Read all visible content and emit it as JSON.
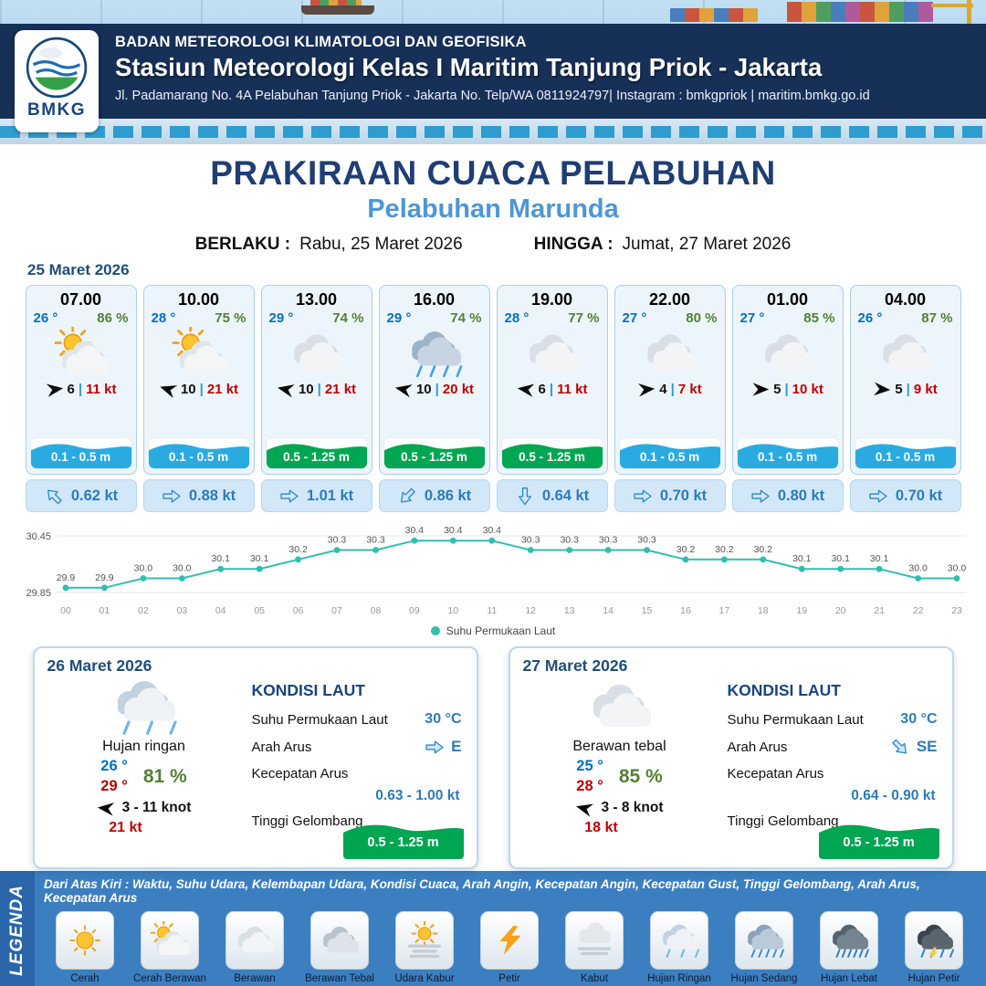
{
  "header": {
    "logo_text": "BMKG",
    "agency": "BADAN METEOROLOGI KLIMATOLOGI DAN GEOFISIKA",
    "station": "Stasiun Meteorologi Kelas I Maritim Tanjung Priok - Jakarta",
    "address": "Jl. Padamarang No. 4A Pelabuhan Tanjung Priok - Jakarta No. Telp/WA 0811924797| Instagram : bmkgpriok | maritim.bmkg.go.id"
  },
  "title": {
    "main": "PRAKIRAAN CUACA PELABUHAN",
    "port": "Pelabuhan Marunda",
    "valid_label": "BERLAKU :",
    "valid_value": "Rabu, 25 Maret 2026",
    "until_label": "HINGGA :",
    "until_value": "Jumat, 27 Maret 2026"
  },
  "hourly": {
    "date": "25 Maret 2026",
    "cards": [
      {
        "time": "07.00",
        "temp": "26 °",
        "humidity": "86 %",
        "icon": "partly-cloudy",
        "wind_deg": -8,
        "wind": "6",
        "sep": "|",
        "gust": "11 kt",
        "wave": "0.1 - 0.5 m",
        "wave_color": "#29abe2",
        "cur_deg": -135,
        "current": "0.62 kt"
      },
      {
        "time": "10.00",
        "temp": "28 °",
        "humidity": "75 %",
        "icon": "partly-cloudy",
        "wind_deg": 198,
        "wind": "10",
        "sep": "|",
        "gust": "21 kt",
        "wave": "0.1 - 0.5 m",
        "wave_color": "#29abe2",
        "cur_deg": 0,
        "current": "0.88 kt"
      },
      {
        "time": "13.00",
        "temp": "29 °",
        "humidity": "74 %",
        "icon": "cloudy",
        "wind_deg": 192,
        "wind": "10",
        "sep": "|",
        "gust": "21 kt",
        "wave": "0.5 - 1.25 m",
        "wave_color": "#00a651",
        "cur_deg": 0,
        "current": "1.01 kt"
      },
      {
        "time": "16.00",
        "temp": "29 °",
        "humidity": "74 %",
        "icon": "rain",
        "wind_deg": 192,
        "wind": "10",
        "sep": "|",
        "gust": "20 kt",
        "wave": "0.5 - 1.25 m",
        "wave_color": "#00a651",
        "cur_deg": 135,
        "current": "0.86 kt"
      },
      {
        "time": "19.00",
        "temp": "28 °",
        "humidity": "77 %",
        "icon": "cloudy",
        "wind_deg": 188,
        "wind": "6",
        "sep": "|",
        "gust": "11 kt",
        "wave": "0.5 - 1.25 m",
        "wave_color": "#00a651",
        "cur_deg": 90,
        "current": "0.64 kt"
      },
      {
        "time": "22.00",
        "temp": "27 °",
        "humidity": "80 %",
        "icon": "cloudy",
        "wind_deg": -5,
        "wind": "4",
        "sep": "|",
        "gust": "7 kt",
        "wave": "0.1 - 0.5 m",
        "wave_color": "#29abe2",
        "cur_deg": 0,
        "current": "0.70 kt"
      },
      {
        "time": "01.00",
        "temp": "27 °",
        "humidity": "85 %",
        "icon": "cloudy",
        "wind_deg": 0,
        "wind": "5",
        "sep": "|",
        "gust": "10 kt",
        "wave": "0.1 - 0.5 m",
        "wave_color": "#29abe2",
        "cur_deg": 0,
        "current": "0.80 kt"
      },
      {
        "time": "04.00",
        "temp": "26 °",
        "humidity": "87 %",
        "icon": "cloudy",
        "wind_deg": 4,
        "wind": "5",
        "sep": "|",
        "gust": "9 kt",
        "wave": "0.1 - 0.5 m",
        "wave_color": "#29abe2",
        "cur_deg": 0,
        "current": "0.70 kt"
      }
    ]
  },
  "chart_data": {
    "type": "line",
    "title": "Suhu Permukaan Laut",
    "legend_label": "Suhu Permukaan Laut",
    "x": [
      "00",
      "01",
      "02",
      "03",
      "04",
      "05",
      "06",
      "07",
      "08",
      "09",
      "10",
      "11",
      "12",
      "13",
      "14",
      "15",
      "16",
      "17",
      "18",
      "19",
      "20",
      "21",
      "22",
      "23"
    ],
    "values": [
      29.9,
      29.9,
      30.0,
      30.0,
      30.1,
      30.1,
      30.2,
      30.3,
      30.3,
      30.4,
      30.4,
      30.4,
      30.3,
      30.3,
      30.3,
      30.3,
      30.2,
      30.2,
      30.2,
      30.1,
      30.1,
      30.1,
      30.0,
      30.0
    ],
    "ylim": [
      29.85,
      30.45
    ],
    "line_color": "#2fbfae",
    "xlabel": "",
    "ylabel": "",
    "grid": "horizontal",
    "legend_position": "bottom"
  },
  "daily": [
    {
      "date": "26 Maret 2026",
      "icon": "rain-light",
      "condition": "Hujan ringan",
      "temp_min": "26 °",
      "temp_max": "29 °",
      "humidity": "81 %",
      "wind_deg": 186,
      "wind": "3 - 11 knot",
      "gust": "21 kt",
      "sea": {
        "title": "KONDISI LAUT",
        "sst_label": "Suhu Permukaan Laut",
        "sst": "30 °C",
        "dir_label": "Arah Arus",
        "cur_deg": 0,
        "dir": "E",
        "spd_label": "Kecepatan Arus",
        "spd": "0.63 - 1.00 kt",
        "wave_label": "Tinggi Gelombang",
        "wave": "0.5 - 1.25 m",
        "wave_color": "#00a651"
      }
    },
    {
      "date": "27 Maret 2026",
      "icon": "cloudy",
      "condition": "Berawan tebal",
      "temp_min": "25 °",
      "temp_max": "28 °",
      "humidity": "85 %",
      "wind_deg": 195,
      "wind": "3 - 8 knot",
      "gust": "18 kt",
      "sea": {
        "title": "KONDISI LAUT",
        "sst_label": "Suhu Permukaan Laut",
        "sst": "30 °C",
        "dir_label": "Arah Arus",
        "cur_deg": 45,
        "dir": "SE",
        "spd_label": "Kecepatan Arus",
        "spd": "0.64 - 0.90 kt",
        "wave_label": "Tinggi Gelombang",
        "wave": "0.5 - 1.25 m",
        "wave_color": "#00a651"
      }
    }
  ],
  "legend": {
    "title": "LEGENDA",
    "note": "Dari Atas Kiri : Waktu, Suhu Udara, Kelembapan Udara, Kondisi Cuaca, Arah Angin, Kecepatan Angin, Kecepatan Gust, Tinggi Gelombang, Arah Arus, Kecepatan Arus",
    "items": [
      {
        "label": "Cerah",
        "icon": "sun"
      },
      {
        "label": "Cerah Berawan",
        "icon": "partly-cloudy"
      },
      {
        "label": "Berawan",
        "icon": "cloudy"
      },
      {
        "label": "Berawan Tebal",
        "icon": "cloudy-thick"
      },
      {
        "label": "Udara Kabur",
        "icon": "haze"
      },
      {
        "label": "Petir",
        "icon": "thunder"
      },
      {
        "label": "Kabut",
        "icon": "fog"
      },
      {
        "label": "Hujan Ringan",
        "icon": "rain-light"
      },
      {
        "label": "Hujan Sedang",
        "icon": "rain-medium"
      },
      {
        "label": "Hujan Lebat",
        "icon": "rain-heavy"
      },
      {
        "label": "Hujan Petir",
        "icon": "rain-thunder"
      }
    ]
  }
}
